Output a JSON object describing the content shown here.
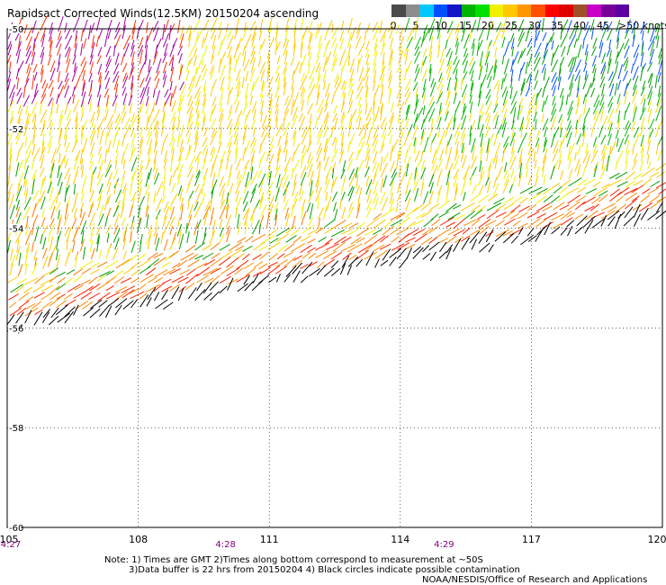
{
  "title": "Rapidsact Corrected Winds(12.5KM) 20150204 ascending",
  "legend": {
    "labels": [
      "0",
      "5",
      "10",
      "15",
      "20",
      "25",
      "30",
      "35",
      "40",
      "45",
      ">50 knots"
    ],
    "colors": [
      "#4a4a4a",
      "#8c8c8c",
      "#00c8ff",
      "#0050ff",
      "#1414c8",
      "#00b400",
      "#00e000",
      "#f0f000",
      "#ffc800",
      "#ff9600",
      "#ff5000",
      "#ff0000",
      "#e00000",
      "#a05028",
      "#c800c8",
      "#780096",
      "#5a00a0"
    ]
  },
  "map": {
    "lon_ticks": [
      "105",
      "108",
      "111",
      "114",
      "117",
      "120"
    ],
    "lat_ticks": [
      "-50",
      "-52",
      "-54",
      "-56",
      "-58",
      "-60"
    ],
    "times": [
      "4:27",
      "4:28",
      "4:29"
    ],
    "time_lons": [
      105,
      110,
      115
    ]
  },
  "notes": {
    "line1": "Note: 1) Times are GMT 2)Times along bottom correspond to measurement at ~50S",
    "line2": "3)Data buffer is 22 hrs from 20150204 4) Black circles indicate possible contamination",
    "credit": "NOAA/NESDIS/Office of Research and Applications"
  }
}
